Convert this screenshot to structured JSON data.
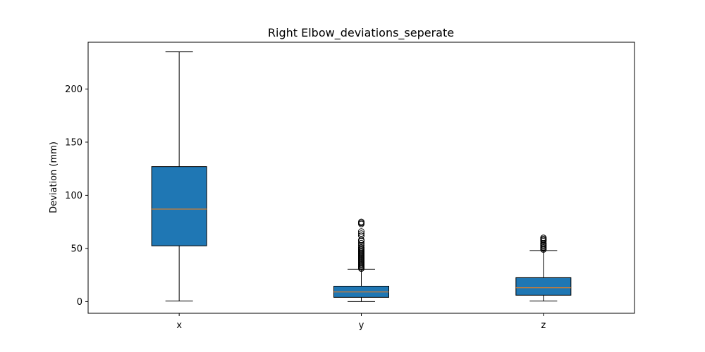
{
  "chart_data": {
    "type": "box",
    "title": "Right Elbow_deviations_seperate",
    "xlabel": "",
    "ylabel": "Deviation (mm)",
    "ylim": [
      -11,
      244
    ],
    "yticks": [
      0,
      50,
      100,
      150,
      200
    ],
    "grid": false,
    "box_color": "#1f77b4",
    "median_color": "#ff7f0e",
    "categories": [
      "x",
      "y",
      "z"
    ],
    "boxes": [
      {
        "label": "x",
        "whisker_low": 0.5,
        "q1": 52.5,
        "median": 87,
        "q3": 127,
        "whisker_high": 235,
        "outliers": []
      },
      {
        "label": "y",
        "whisker_low": 0,
        "q1": 4,
        "median": 9,
        "q3": 14.5,
        "whisker_high": 30.5,
        "outliers": [
          31,
          32,
          33,
          34,
          35,
          36,
          37,
          38,
          39,
          40,
          41,
          42,
          43,
          44,
          45,
          46,
          47,
          48,
          49,
          50,
          51,
          53,
          55,
          57,
          58,
          62,
          64,
          66,
          73,
          74,
          75
        ]
      },
      {
        "label": "z",
        "whisker_low": 0.5,
        "q1": 6,
        "median": 13,
        "q3": 22.5,
        "whisker_high": 48,
        "outliers": [
          49,
          50,
          51,
          52,
          53,
          54,
          55,
          57,
          58,
          59,
          60
        ]
      }
    ]
  }
}
